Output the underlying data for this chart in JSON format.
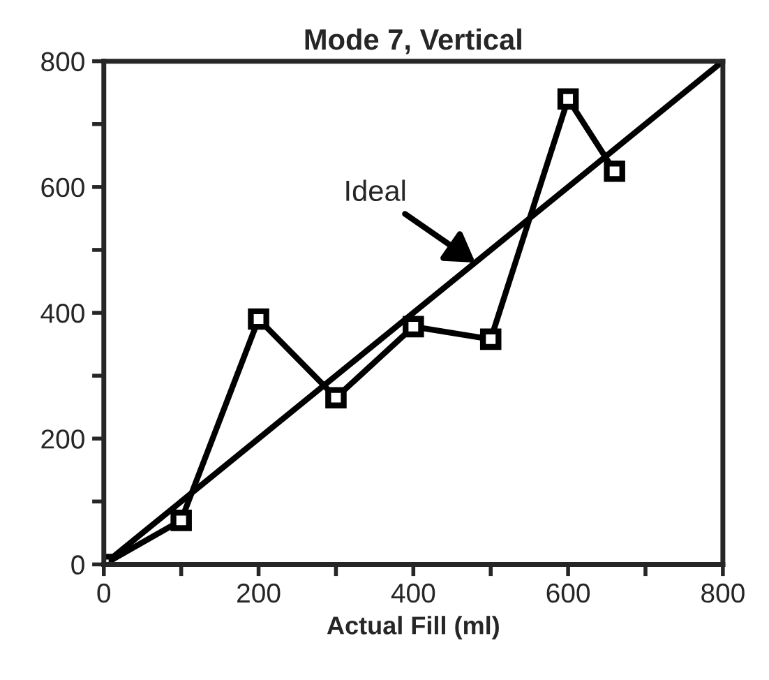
{
  "chart_data": {
    "type": "line",
    "title": "Mode 7, Vertical",
    "xlabel": "Actual Fill (ml)",
    "series": [
      {
        "x": [
          0,
          800
        ],
        "values": [
          0,
          800
        ],
        "color": "#000000"
      },
      {
        "x": [
          0,
          100,
          200,
          300,
          400,
          500,
          600,
          660
        ],
        "values": [
          0,
          70,
          390,
          265,
          378,
          358,
          740,
          625
        ],
        "color": "#000000",
        "marker": "square"
      }
    ],
    "annotations": [
      {
        "text": "Ideal",
        "x": 480,
        "y": 480
      }
    ],
    "xlim": [
      0,
      800
    ],
    "ylim": [
      0,
      800
    ],
    "xticks": [
      0,
      {
        "value": 100,
        "label": null
      },
      200,
      {
        "value": 300,
        "label": null
      },
      400,
      {
        "value": 500,
        "label": null
      },
      600,
      {
        "value": 700,
        "label": null
      },
      800
    ],
    "yticks": [
      0,
      {
        "value": 100,
        "label": null
      },
      200,
      {
        "value": 300,
        "label": null
      },
      400,
      {
        "value": 500,
        "label": null
      },
      600,
      {
        "value": 700,
        "label": null
      },
      800
    ],
    "grid": false,
    "legend": false,
    "line_style": "solid"
  }
}
